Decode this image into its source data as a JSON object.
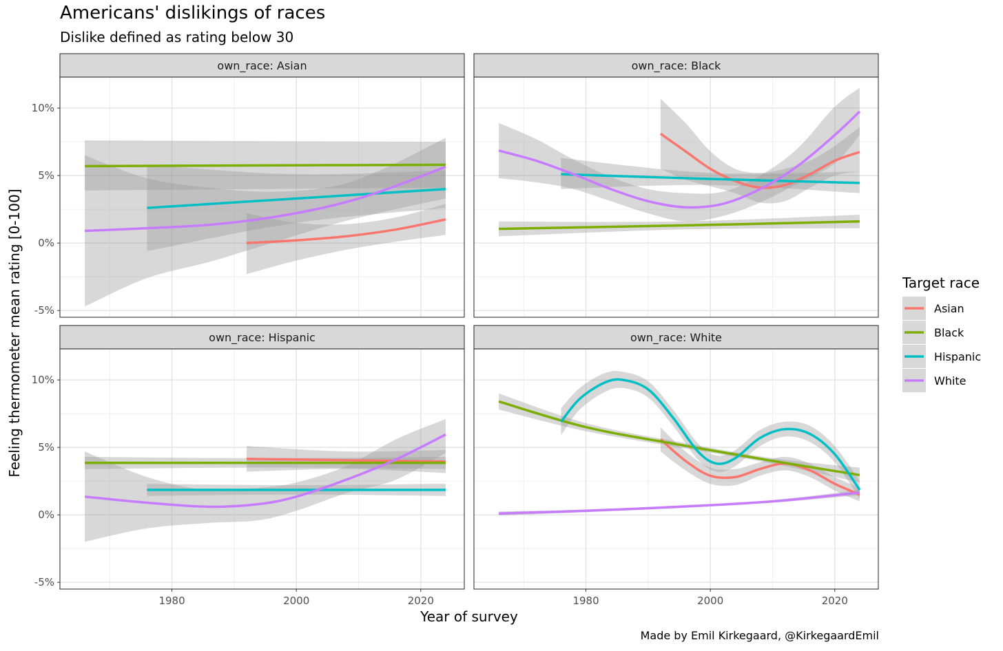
{
  "title": "Americans' dislikings of races",
  "subtitle": "Dislike defined as rating below 30",
  "caption": "Made by Emil Kirkegaard, @KirkegaardEmil",
  "colors": {
    "Asian": "#F8766D",
    "Black": "#7CAE00",
    "Hispanic": "#00BFC4",
    "White": "#C77CFF",
    "ribbon": "#999999",
    "strip": "#D9D9D9"
  },
  "chart_data": {
    "type": "line",
    "xlabel": "Year of survey",
    "ylabel": "Feeling thermometer mean rating [0-100]",
    "x_ticks": [
      1980,
      2000,
      2020
    ],
    "y_ticks": [
      -5,
      0,
      5,
      10
    ],
    "y_tick_labels": [
      "-5%",
      "0%",
      "5%",
      "10%"
    ],
    "xlim": [
      1962,
      2027
    ],
    "ylim": [
      -5.5,
      12.3
    ],
    "grid": true,
    "legend": {
      "title": "Target race",
      "position": "right",
      "entries": [
        "Asian",
        "Black",
        "Hispanic",
        "White"
      ]
    },
    "panels": [
      {
        "strip": "own_race: Asian",
        "series": [
          {
            "name": "Asian",
            "x": [
              1992,
              2000,
              2008,
              2016,
              2024
            ],
            "y": [
              0.0,
              0.2,
              0.5,
              1.0,
              1.75
            ],
            "lower": [
              -2.3,
              -1.3,
              -0.5,
              0.1,
              0.6
            ],
            "upper": [
              2.2,
              1.5,
              1.4,
              1.9,
              2.9
            ]
          },
          {
            "name": "Black",
            "x": [
              1966,
              1995,
              2024
            ],
            "y": [
              5.7,
              5.75,
              5.8
            ],
            "lower": [
              3.9,
              4.0,
              4.1
            ],
            "upper": [
              7.6,
              7.55,
              7.5
            ]
          },
          {
            "name": "Hispanic",
            "x": [
              1976,
              2000,
              2024
            ],
            "y": [
              2.6,
              3.3,
              4.0
            ],
            "lower": [
              -0.6,
              1.5,
              2.6
            ],
            "upper": [
              5.8,
              5.1,
              5.4
            ]
          },
          {
            "name": "White",
            "x": [
              1966,
              1976,
              1986,
              1996,
              2006,
              2014,
              2024
            ],
            "y": [
              0.9,
              1.1,
              1.35,
              1.9,
              2.8,
              3.9,
              5.65
            ],
            "lower": [
              -4.7,
              -2.6,
              -1.4,
              0.0,
              1.4,
              2.3,
              3.3
            ],
            "upper": [
              6.5,
              4.8,
              4.1,
              3.8,
              4.2,
              5.5,
              7.8
            ]
          }
        ]
      },
      {
        "strip": "own_race: Black",
        "series": [
          {
            "name": "Asian",
            "x": [
              1992,
              1996,
              2000,
              2004,
              2008,
              2012,
              2016,
              2020,
              2024
            ],
            "y": [
              8.1,
              6.8,
              5.5,
              4.6,
              4.1,
              4.3,
              5.1,
              6.1,
              6.75
            ],
            "lower": [
              5.5,
              4.7,
              4.2,
              3.7,
              3.0,
              3.1,
              4.1,
              5.0,
              5.3
            ],
            "upper": [
              10.7,
              8.9,
              6.8,
              5.5,
              5.2,
              5.5,
              6.1,
              7.2,
              8.6
            ]
          },
          {
            "name": "Black",
            "x": [
              1966,
              1995,
              2024
            ],
            "y": [
              1.05,
              1.3,
              1.6
            ],
            "lower": [
              0.5,
              1.0,
              1.1
            ],
            "upper": [
              1.6,
              1.6,
              2.1
            ]
          },
          {
            "name": "Hispanic",
            "x": [
              1976,
              2000,
              2024
            ],
            "y": [
              5.1,
              4.75,
              4.45
            ],
            "lower": [
              4.0,
              4.3,
              3.7
            ],
            "upper": [
              6.3,
              5.2,
              5.3
            ]
          },
          {
            "name": "White",
            "x": [
              1966,
              1972,
              1978,
              1984,
              1990,
              1996,
              2002,
              2008,
              2014,
              2020,
              2024
            ],
            "y": [
              6.85,
              6.1,
              5.1,
              4.0,
              3.1,
              2.65,
              2.9,
              4.0,
              5.7,
              8.0,
              9.75
            ],
            "lower": [
              4.8,
              4.5,
              4.0,
              3.1,
              2.2,
              1.6,
              2.0,
              3.0,
              4.4,
              5.9,
              8.0
            ],
            "upper": [
              8.9,
              7.7,
              6.2,
              4.9,
              4.0,
              3.7,
              3.8,
              5.0,
              7.0,
              10.1,
              11.5
            ]
          }
        ]
      },
      {
        "strip": "own_race: Hispanic",
        "series": [
          {
            "name": "Asian",
            "x": [
              1992,
              2008,
              2024
            ],
            "y": [
              4.15,
              4.05,
              3.95
            ],
            "lower": [
              3.2,
              3.4,
              3.1
            ],
            "upper": [
              5.1,
              4.7,
              4.8
            ]
          },
          {
            "name": "Black",
            "x": [
              1966,
              1995,
              2024
            ],
            "y": [
              3.85,
              3.85,
              3.85
            ],
            "lower": [
              3.4,
              3.5,
              3.4
            ],
            "upper": [
              4.3,
              4.2,
              4.3
            ]
          },
          {
            "name": "Hispanic",
            "x": [
              1976,
              2000,
              2024
            ],
            "y": [
              1.85,
              1.85,
              1.85
            ],
            "lower": [
              1.4,
              1.5,
              1.4
            ],
            "upper": [
              2.3,
              2.2,
              2.3
            ]
          },
          {
            "name": "White",
            "x": [
              1966,
              1976,
              1986,
              1994,
              2000,
              2008,
              2016,
              2024
            ],
            "y": [
              1.35,
              0.9,
              0.6,
              0.8,
              1.35,
              2.6,
              4.1,
              5.95
            ],
            "lower": [
              -2.0,
              -1.0,
              -0.6,
              -0.4,
              0.3,
              1.6,
              2.6,
              4.6
            ],
            "upper": [
              4.7,
              2.8,
              1.8,
              2.0,
              2.4,
              3.6,
              5.6,
              7.1
            ]
          }
        ]
      },
      {
        "strip": "own_race: White",
        "series": [
          {
            "name": "Asian",
            "x": [
              1992,
              1996,
              2000,
              2004,
              2008,
              2012,
              2016,
              2020,
              2024
            ],
            "y": [
              5.6,
              4.0,
              2.9,
              2.8,
              3.4,
              3.8,
              3.3,
              2.3,
              1.5
            ],
            "lower": [
              4.7,
              3.3,
              2.3,
              2.2,
              2.9,
              3.3,
              2.8,
              1.8,
              1.0
            ],
            "upper": [
              6.5,
              4.7,
              3.5,
              3.4,
              3.9,
              4.3,
              3.8,
              2.8,
              2.0
            ]
          },
          {
            "name": "Black",
            "x": [
              1966,
              1980,
              1995,
              2010,
              2024
            ],
            "y": [
              8.4,
              6.5,
              5.2,
              4.0,
              2.95
            ],
            "lower": [
              7.8,
              6.2,
              5.0,
              3.8,
              2.4
            ],
            "upper": [
              9.0,
              6.8,
              5.4,
              4.2,
              3.5
            ]
          },
          {
            "name": "Hispanic",
            "x": [
              1976,
              1979,
              1983,
              1986,
              1990,
              1994,
              1998,
              2001,
              2004,
              2008,
              2012,
              2016,
              2020,
              2024
            ],
            "y": [
              6.9,
              8.6,
              9.8,
              10.0,
              9.3,
              7.2,
              4.7,
              3.8,
              4.2,
              5.7,
              6.35,
              6.0,
              4.5,
              1.85
            ],
            "lower": [
              5.9,
              7.8,
              9.1,
              9.4,
              8.7,
              6.6,
              4.1,
              3.2,
              3.6,
              5.1,
              5.8,
              5.4,
              3.9,
              1.2
            ],
            "upper": [
              7.9,
              9.4,
              10.5,
              10.6,
              9.9,
              7.8,
              5.3,
              4.4,
              4.8,
              6.3,
              6.9,
              6.6,
              5.1,
              2.5
            ]
          },
          {
            "name": "White",
            "x": [
              1966,
              1980,
              1995,
              2010,
              2024
            ],
            "y": [
              0.1,
              0.3,
              0.6,
              1.0,
              1.65
            ],
            "lower": [
              -0.05,
              0.2,
              0.5,
              0.9,
              1.45
            ],
            "upper": [
              0.25,
              0.4,
              0.7,
              1.1,
              1.85
            ]
          }
        ]
      }
    ]
  }
}
